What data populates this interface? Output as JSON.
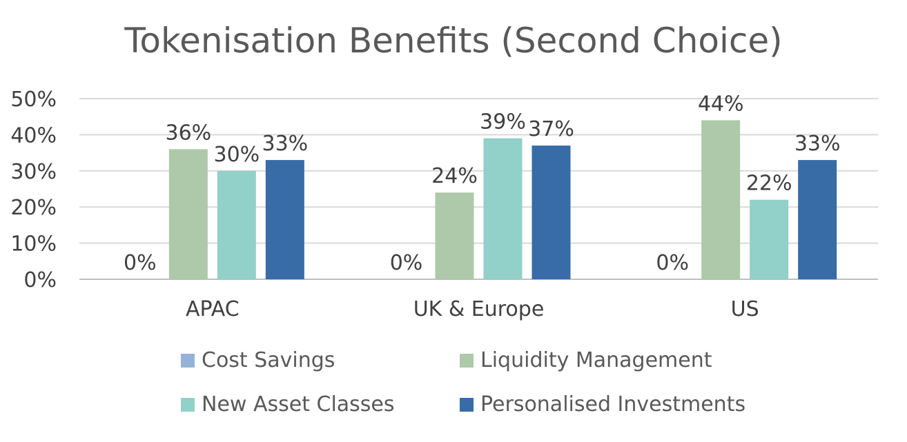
{
  "chart_data": {
    "type": "bar",
    "title": "Tokenisation Benefits (Second Choice)",
    "categories": [
      "APAC",
      "UK & Europe",
      "US"
    ],
    "series": [
      {
        "name": "Cost Savings",
        "color": "#95B3D7",
        "values": [
          0,
          0,
          0
        ],
        "labels": [
          "0%",
          "0%",
          "0%"
        ]
      },
      {
        "name": "Liquidity Management",
        "color": "#ADC9A9",
        "values": [
          36,
          24,
          44
        ],
        "labels": [
          "36%",
          "24%",
          "44%"
        ]
      },
      {
        "name": "New Asset Classes",
        "color": "#92D0CA",
        "values": [
          30,
          39,
          22
        ],
        "labels": [
          "30%",
          "39%",
          "22%"
        ]
      },
      {
        "name": "Personalised Investments",
        "color": "#376CA6",
        "values": [
          33,
          37,
          33
        ],
        "labels": [
          "33%",
          "37%",
          "33%"
        ]
      }
    ],
    "yticks": [
      "0%",
      "10%",
      "20%",
      "30%",
      "40%",
      "50%"
    ],
    "ylim": [
      0,
      50
    ],
    "xlabel": "",
    "ylabel": "",
    "grid": true,
    "legend": "bottom"
  }
}
